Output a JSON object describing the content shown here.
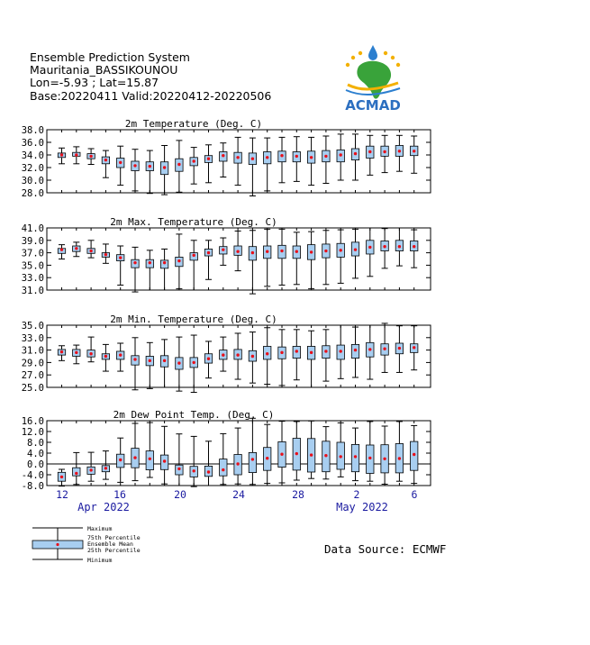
{
  "header": {
    "line1": "Ensemble Prediction System",
    "line2": "Mauritania_BASSIKOUNOU",
    "line3": "Lon=-5.93 ; Lat=15.87",
    "line4": "Base:20220411 Valid:20220412-20220506"
  },
  "logo": {
    "text": "ACMAD"
  },
  "source": "Data Source: ECMWF",
  "legend": {
    "maximum": "Maximum",
    "p75": "75th Percentile",
    "mean": "Ensemble Mean",
    "p25": "25th Percentile",
    "minimum": "Minimum"
  },
  "colors": {
    "box": "#a8cef0",
    "mean": "#e8101a",
    "axis": "#000000",
    "date": "#1a1aa0"
  },
  "x_axis": {
    "tick_labels": [
      "12",
      "16",
      "20",
      "24",
      "28",
      "2",
      "6"
    ],
    "month_labels": [
      "Apr 2022",
      "May 2022"
    ]
  },
  "chart_data": [
    {
      "type": "box",
      "title": "2m Temperature (Deg. C)",
      "ylim": [
        28.0,
        38.0
      ],
      "yticks": [
        "38.0",
        "36.0",
        "34.0",
        "32.0",
        "30.0",
        "28.0"
      ],
      "series": {
        "min": [
          32.6,
          32.6,
          32.5,
          30.4,
          29.2,
          28.3,
          27.9,
          27.7,
          28.1,
          29.4,
          29.6,
          30.5,
          29.2,
          27.5,
          28.3,
          29.6,
          29.8,
          29.2,
          29.5,
          30.0,
          30.0,
          30.8,
          31.2,
          31.4,
          31.1
        ],
        "p25": [
          33.6,
          33.8,
          33.4,
          32.6,
          32.0,
          31.5,
          31.5,
          30.9,
          31.4,
          32.3,
          32.8,
          33.0,
          32.7,
          32.5,
          32.6,
          32.9,
          32.9,
          32.7,
          32.9,
          32.9,
          33.2,
          33.5,
          33.8,
          33.8,
          33.9
        ],
        "mean": [
          34.0,
          34.0,
          33.8,
          33.2,
          32.8,
          32.3,
          32.2,
          32.0,
          32.5,
          33.0,
          33.4,
          33.9,
          33.6,
          33.4,
          33.6,
          33.9,
          33.8,
          33.6,
          33.8,
          34.0,
          34.2,
          34.5,
          34.5,
          34.6,
          34.6
        ],
        "p75": [
          34.3,
          34.4,
          34.2,
          33.7,
          33.5,
          33.0,
          32.9,
          32.9,
          33.4,
          33.6,
          33.9,
          34.5,
          34.4,
          34.3,
          34.5,
          34.6,
          34.5,
          34.6,
          34.7,
          34.8,
          35.0,
          35.4,
          35.4,
          35.5,
          35.4
        ],
        "max": [
          35.1,
          35.3,
          35.0,
          34.7,
          35.4,
          34.9,
          34.7,
          35.5,
          36.3,
          35.2,
          35.6,
          35.9,
          36.8,
          36.7,
          36.7,
          36.8,
          36.9,
          36.8,
          37.0,
          37.3,
          37.3,
          37.1,
          37.1,
          37.1,
          37.0
        ]
      }
    },
    {
      "type": "box",
      "title": "2m Max. Temperature (Deg. C)",
      "ylim": [
        31.0,
        41.0
      ],
      "yticks": [
        "41.0",
        "39.0",
        "37.0",
        "35.0",
        "33.0",
        "31.0"
      ],
      "series": {
        "min": [
          36.0,
          36.4,
          36.2,
          35.3,
          31.8,
          30.7,
          31.0,
          31.0,
          31.2,
          31.0,
          32.7,
          35.0,
          34.1,
          30.4,
          31.6,
          31.8,
          31.9,
          31.2,
          31.9,
          32.1,
          32.9,
          33.2,
          34.5,
          34.9,
          34.6
        ],
        "p25": [
          36.9,
          37.2,
          36.9,
          36.3,
          35.7,
          34.6,
          34.6,
          34.5,
          34.8,
          35.8,
          36.5,
          36.8,
          36.6,
          35.8,
          36.1,
          36.1,
          36.1,
          35.9,
          36.2,
          36.3,
          36.5,
          36.8,
          37.3,
          37.3,
          37.3
        ],
        "mean": [
          37.5,
          37.7,
          37.3,
          36.7,
          36.2,
          35.4,
          35.4,
          35.4,
          35.7,
          36.6,
          37.0,
          37.5,
          37.2,
          37.0,
          37.2,
          37.3,
          37.2,
          37.1,
          37.3,
          37.4,
          37.5,
          37.9,
          38.0,
          38.0,
          38.0
        ],
        "p75": [
          37.7,
          38.1,
          37.7,
          37.0,
          36.7,
          35.9,
          35.9,
          35.8,
          36.3,
          37.0,
          37.6,
          38.0,
          38.1,
          38.0,
          38.1,
          38.2,
          38.1,
          38.3,
          38.4,
          38.5,
          38.7,
          39.0,
          38.9,
          39.0,
          38.9
        ],
        "max": [
          38.3,
          38.7,
          39.0,
          38.4,
          38.1,
          37.9,
          37.4,
          37.6,
          40.0,
          39.0,
          39.0,
          39.4,
          40.5,
          40.6,
          40.8,
          40.8,
          40.3,
          40.4,
          40.6,
          40.7,
          40.8,
          41.0,
          40.9,
          41.0,
          40.7
        ]
      }
    },
    {
      "type": "box",
      "title": "2m Min. Temperature (Deg. C)",
      "ylim": [
        25.0,
        35.0
      ],
      "yticks": [
        "35.0",
        "33.0",
        "31.0",
        "29.0",
        "27.0",
        "25.0"
      ],
      "series": {
        "min": [
          29.3,
          28.8,
          29.1,
          27.6,
          27.6,
          24.6,
          24.8,
          25.0,
          24.4,
          24.2,
          26.5,
          27.6,
          26.3,
          25.7,
          25.5,
          25.3,
          26.2,
          25.0,
          26.0,
          26.4,
          26.6,
          26.3,
          27.4,
          27.4,
          27.8
        ],
        "p25": [
          30.2,
          30.0,
          29.9,
          29.5,
          29.5,
          28.6,
          28.5,
          28.3,
          27.9,
          28.2,
          28.9,
          29.5,
          29.5,
          29.2,
          29.5,
          29.6,
          29.7,
          29.5,
          29.7,
          29.5,
          29.7,
          29.9,
          30.2,
          30.4,
          30.6
        ],
        "mean": [
          30.7,
          30.6,
          30.4,
          30.0,
          30.2,
          29.5,
          29.3,
          29.3,
          28.9,
          29.0,
          29.6,
          30.2,
          30.2,
          30.0,
          30.4,
          30.6,
          30.8,
          30.6,
          30.8,
          30.8,
          31.0,
          31.1,
          31.2,
          31.3,
          31.4
        ],
        "p75": [
          31.1,
          31.1,
          31.0,
          30.4,
          30.8,
          30.1,
          30.0,
          30.1,
          29.8,
          29.8,
          30.4,
          31.0,
          31.1,
          30.9,
          31.6,
          31.5,
          31.6,
          31.6,
          31.7,
          31.8,
          31.9,
          32.2,
          32.0,
          32.1,
          32.0
        ],
        "max": [
          31.7,
          31.8,
          33.1,
          31.9,
          32.1,
          33.0,
          32.2,
          32.7,
          33.1,
          33.4,
          32.4,
          33.1,
          33.7,
          33.9,
          34.6,
          34.3,
          34.3,
          34.1,
          34.3,
          35.0,
          34.7,
          35.0,
          35.3,
          34.9,
          34.9
        ]
      }
    },
    {
      "type": "box",
      "title": "2m Dew Point Temp. (Deg. C)",
      "ylim": [
        -8.0,
        16.0
      ],
      "yticks": [
        "16.0",
        "12.0",
        "8.0",
        "4.0",
        "0.0",
        "-4.0",
        "-8.0"
      ],
      "series": {
        "min": [
          -8.2,
          -7.6,
          -6.4,
          -5.7,
          -6.8,
          -6.2,
          -5.0,
          -7.4,
          -8.0,
          -8.4,
          -8.0,
          -7.6,
          -7.4,
          -7.6,
          -7.2,
          -7.0,
          -6.0,
          -5.4,
          -5.6,
          -4.8,
          -6.2,
          -6.4,
          -7.5,
          -6.4,
          -7.2
        ],
        "p25": [
          -6.4,
          -4.4,
          -3.8,
          -2.9,
          -1.3,
          -1.4,
          -2.2,
          -2.1,
          -4.0,
          -4.8,
          -4.6,
          -4.4,
          -4.0,
          -3.2,
          -2.4,
          -1.2,
          -2.3,
          -3.0,
          -2.9,
          -2.0,
          -2.9,
          -3.5,
          -3.3,
          -3.3,
          -2.4
        ],
        "mean": [
          -4.8,
          -3.5,
          -2.3,
          -1.6,
          1.5,
          2.3,
          1.9,
          1.0,
          -1.8,
          -2.6,
          -3.0,
          -2.2,
          0.0,
          1.7,
          2.1,
          3.6,
          3.8,
          3.3,
          3.1,
          2.7,
          2.7,
          2.2,
          1.9,
          2.0,
          3.5
        ],
        "p75": [
          -3.1,
          -1.4,
          -1.1,
          -0.6,
          3.6,
          5.8,
          4.8,
          3.3,
          -0.4,
          -0.9,
          -0.8,
          1.8,
          3.5,
          4.2,
          6.1,
          8.2,
          9.5,
          9.4,
          8.4,
          8.0,
          7.2,
          7.0,
          7.1,
          7.5,
          8.3
        ],
        "max": [
          -2.0,
          4.2,
          4.3,
          4.8,
          9.6,
          15.0,
          15.3,
          13.9,
          11.1,
          10.2,
          8.4,
          11.2,
          13.3,
          16.9,
          14.6,
          15.8,
          15.7,
          15.9,
          13.8,
          15.2,
          13.3,
          15.7,
          14.0,
          15.7,
          14.2
        ]
      }
    }
  ]
}
